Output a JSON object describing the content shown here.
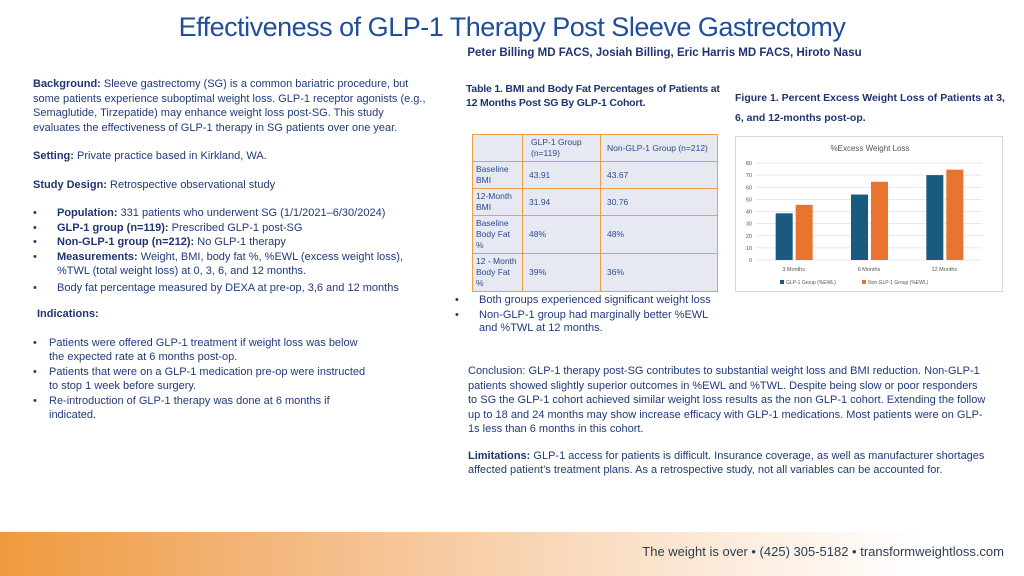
{
  "title": "Effectiveness of GLP-1 Therapy Post Sleeve Gastrectomy",
  "authors": "Peter Billing MD FACS, Josiah Billing, Eric Harris MD FACS, Hiroto Nasu",
  "background": {
    "label": "Background:",
    "text": " Sleeve gastrectomy (SG) is a common bariatric procedure, but some patients experience suboptimal weight loss. GLP-1 receptor agonists (e.g., Semaglutide, Tirzepatide) may enhance weight loss post-SG. This study evaluates the effectiveness of GLP-1 therapy in SG patients over one year."
  },
  "setting": {
    "label": "Setting:",
    "text": "  Private practice based in Kirkland, WA."
  },
  "design": {
    "label": "Study Design:",
    "text": " Retrospective observational study"
  },
  "bullets": [
    {
      "label": "Population:",
      "text": " 331 patients who underwent SG (1/1/2021–6/30/2024)"
    },
    {
      "label": "GLP-1 group (n=119):",
      "text": " Prescribed GLP-1 post-SG"
    },
    {
      "label": "Non-GLP-1 group (n=212):",
      "text": " No GLP-1 therapy"
    },
    {
      "label": "Measurements:",
      "text": " Weight, BMI, body fat %, %EWL (excess weight loss), %TWL (total weight loss) at 0, 3, 6, and 12 months."
    },
    {
      "label": "",
      "text": "Body fat percentage measured by DEXA at pre-op, 3,6 and 12 months"
    }
  ],
  "indications": {
    "label": "Indications:",
    "items": [
      "Patients were offered GLP-1 treatment if weight loss was below the expected rate at 6 months post-op.",
      "Patients that were on a GLP-1 medication pre-op were instructed to stop 1 week before surgery.",
      "Re-introduction of GLP-1 therapy was done at 6 months if indicated."
    ]
  },
  "table": {
    "caption": "Table 1. BMI and Body Fat Percentages of Patients at 12 Months Post SG By GLP-1 Cohort.",
    "headers": [
      "",
      "GLP-1 Group (n=119)",
      "Non-GLP-1 Group (n=212)"
    ],
    "rows": [
      [
        "Baseline BMI",
        "43.91",
        "43.67"
      ],
      [
        "12-Month BMI",
        "31.94",
        "30.76"
      ],
      [
        "Baseline Body Fat %",
        "48%",
        "48%"
      ],
      [
        "12 - Month Body Fat %",
        "39%",
        "36%"
      ]
    ]
  },
  "findings": [
    "Both groups experienced significant weight loss",
    "Non-GLP-1 group had marginally better %EWL and %TWL at 12 months."
  ],
  "conclusion": "Conclusion: GLP-1 therapy post-SG contributes to substantial weight loss and BMI reduction. Non-GLP-1 patients showed slightly superior outcomes in %EWL and %TWL. Despite being slow or poor responders to SG the GLP-1 cohort achieved similar weight loss results as the non GLP-1 cohort. Extending the follow up to 18 and 24 months may show increase efficacy with GLP-1 medications. Most patients were on GLP-1s less than 6 months in this cohort.",
  "limitations": {
    "label": "Limitations:",
    "text": " GLP-1 access for patients is difficult. Insurance coverage, as well as manufacturer shortages affected patient’s treatment plans. As a retrospective study, not all variables can be accounted for."
  },
  "figure_caption": "Figure 1. Percent Excess Weight Loss of Patients at 3, 6, and 12-months post-op.",
  "chart_data": {
    "type": "bar",
    "title": "%Excess Weight Loss",
    "categories": [
      "3 Months",
      "6 Months",
      "12 Months"
    ],
    "series": [
      {
        "name": "GLP-1 Group (%EWL)",
        "values": [
          38.5,
          54,
          70
        ],
        "color": "#1a5a80"
      },
      {
        "name": "Non GLP-1 Group (%EWL)",
        "values": [
          45.5,
          64.5,
          74.5
        ],
        "color": "#e8742f"
      }
    ],
    "ylim": [
      0,
      80
    ],
    "yticks": [
      0,
      10,
      20,
      30,
      40,
      50,
      60,
      70,
      80
    ],
    "grid": true,
    "legend": "bottom"
  },
  "footer": "The weight is over • (425) 305-5182 • transformweightloss.com"
}
